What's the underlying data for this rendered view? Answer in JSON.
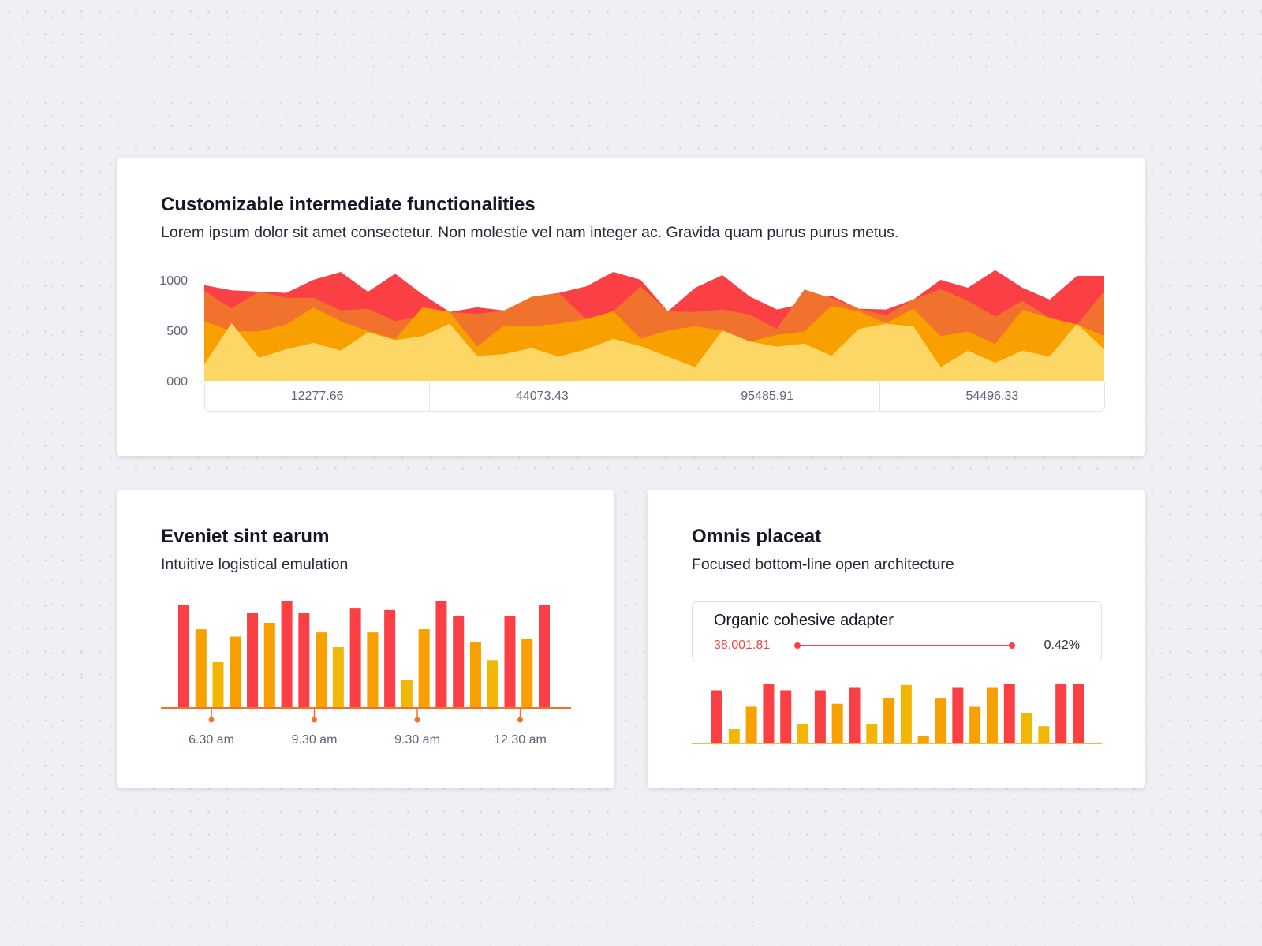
{
  "colors": {
    "red": "#fa4044",
    "orange": "#f0722d",
    "amber": "#f8a000",
    "yellow": "#fdd766",
    "bar_yellow": "#f2b705",
    "axis": "#f0722d"
  },
  "top_card": {
    "title": "Customizable intermediate functionalities",
    "subtitle": "Lorem ipsum dolor sit amet consectetur. Non molestie vel nam integer ac. Gravida quam purus purus metus.",
    "table": [
      "12277.66",
      "44073.43",
      "95485.91",
      "54496.33"
    ]
  },
  "left_card": {
    "title": "Eveniet sint earum",
    "subtitle": "Intuitive logistical emulation"
  },
  "right_card": {
    "title": "Omnis placeat",
    "subtitle": "Focused bottom-line open architecture",
    "stat": {
      "label": "Organic cohesive adapter",
      "value": "38,001.81",
      "percent": "0.42%"
    }
  },
  "chart_data": [
    {
      "type": "area",
      "ylim": [
        0,
        1000
      ],
      "yticks": [
        "1000",
        "500",
        "000"
      ],
      "grid": false,
      "series": [
        {
          "color": "red",
          "values": [
            948,
            896,
            883,
            870,
            1000,
            1078,
            883,
            1060,
            857,
            681,
            727,
            696,
            831,
            870,
            935,
            1078,
            1000,
            688,
            922,
            1047,
            836,
            706,
            766,
            844,
            714,
            706,
            805,
            1000,
            922,
            1096,
            922,
            805,
            1039,
            1039
          ]
        },
        {
          "color": "orange",
          "values": [
            888,
            719,
            883,
            823,
            823,
            696,
            714,
            592,
            636,
            681,
            662,
            696,
            831,
            870,
            610,
            688,
            935,
            688,
            681,
            706,
            655,
            514,
            904,
            818,
            714,
            649,
            805,
            909,
            792,
            636,
            792,
            623,
            558,
            888
          ]
        },
        {
          "color": "amber",
          "values": [
            592,
            493,
            488,
            558,
            727,
            592,
            493,
            410,
            727,
            681,
            338,
            551,
            540,
            566,
            610,
            688,
            416,
            499,
            540,
            499,
            390,
            455,
            488,
            740,
            688,
            571,
            714,
            442,
            488,
            364,
            701,
            623,
            558,
            442
          ]
        },
        {
          "color": "yellow",
          "values": [
            161,
            571,
            229,
            312,
            377,
            299,
            481,
            403,
            442,
            566,
            247,
            265,
            325,
            239,
            312,
            416,
            343,
            239,
            135,
            499,
            390,
            338,
            369,
            247,
            514,
            566,
            540,
            135,
            299,
            177,
            299,
            239,
            566,
            312
          ]
        }
      ]
    },
    {
      "type": "bar",
      "xticks": [
        "6.30 am",
        "9.30 am",
        "9.30 am",
        "12.30 am"
      ],
      "values": [
        97,
        74,
        43,
        67,
        89,
        80,
        100,
        89,
        71,
        57,
        94,
        71,
        92,
        26,
        74,
        100,
        86,
        62,
        45,
        86,
        65,
        97
      ],
      "colors": [
        "red",
        "amber",
        "bar_yellow",
        "amber",
        "red",
        "amber",
        "red",
        "red",
        "amber",
        "bar_yellow",
        "red",
        "amber",
        "red",
        "bar_yellow",
        "amber",
        "red",
        "red",
        "amber",
        "bar_yellow",
        "red",
        "amber",
        "red"
      ]
    },
    {
      "type": "bar",
      "values": [
        90,
        24,
        62,
        100,
        90,
        33,
        90,
        67,
        94,
        33,
        76,
        99,
        12,
        76,
        94,
        62,
        94,
        100,
        52,
        29,
        100,
        100
      ],
      "colors": [
        "red",
        "bar_yellow",
        "amber",
        "red",
        "red",
        "bar_yellow",
        "red",
        "amber",
        "red",
        "bar_yellow",
        "amber",
        "bar_yellow",
        "amber",
        "amber",
        "red",
        "amber",
        "amber",
        "red",
        "bar_yellow",
        "bar_yellow",
        "red",
        "red"
      ]
    }
  ]
}
